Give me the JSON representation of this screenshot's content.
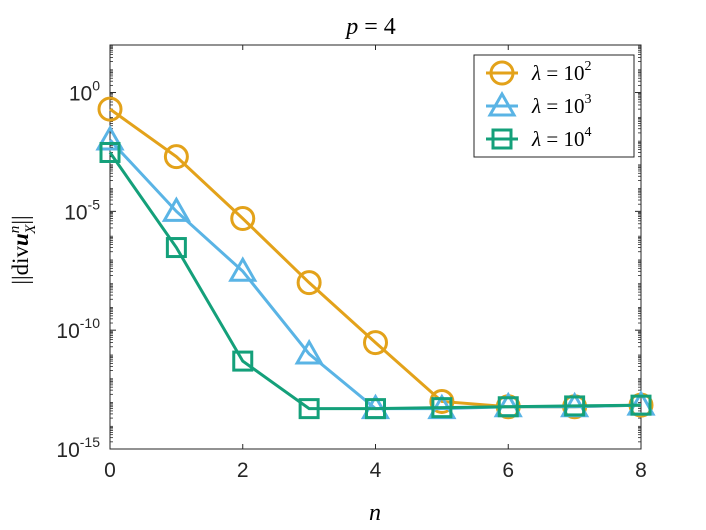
{
  "chart_data": {
    "type": "line",
    "title_var": "p",
    "title_eq": " = ",
    "title_val": "4",
    "xlabel": "n",
    "ylabel_pre": "||div",
    "ylabel_u": "u",
    "ylabel_sup": "n",
    "ylabel_sub": "X",
    "ylabel_post": "||",
    "yscale": "log",
    "xlim": [
      0,
      8
    ],
    "ylim": [
      1e-15,
      100.0
    ],
    "xticks": [
      0,
      2,
      4,
      6,
      8
    ],
    "xtick_labels": [
      "0",
      "2",
      "4",
      "6",
      "8"
    ],
    "yticks": [
      1e-15,
      1e-10,
      1e-05,
      1
    ],
    "ytick_base": "10",
    "ytick_exps": [
      "-15",
      "-10",
      "-5",
      "0"
    ],
    "legend_position": "top-right",
    "grid": false,
    "x": [
      0,
      1,
      2,
      3,
      4,
      5,
      6,
      7,
      8
    ],
    "series": [
      {
        "lambda": "λ",
        "eq": " = 10",
        "exp": "2",
        "color": "#E3A21A",
        "marker": "circle",
        "values": [
          0.2,
          0.002,
          5e-06,
          1e-08,
          3e-11,
          1e-13,
          6e-14,
          6e-14,
          7e-14
        ]
      },
      {
        "lambda": "λ",
        "eq": " = 10",
        "exp": "3",
        "color": "#5AB4E5",
        "marker": "triangle",
        "values": [
          0.01,
          1e-05,
          3e-08,
          1e-11,
          5e-14,
          5e-14,
          6e-14,
          6e-14,
          7e-14
        ]
      },
      {
        "lambda": "λ",
        "eq": " = 10",
        "exp": "4",
        "color": "#14A07A",
        "marker": "square",
        "values": [
          0.003,
          3e-07,
          5e-12,
          5e-14,
          5e-14,
          5.5e-14,
          6e-14,
          6.5e-14,
          7e-14
        ]
      }
    ]
  }
}
